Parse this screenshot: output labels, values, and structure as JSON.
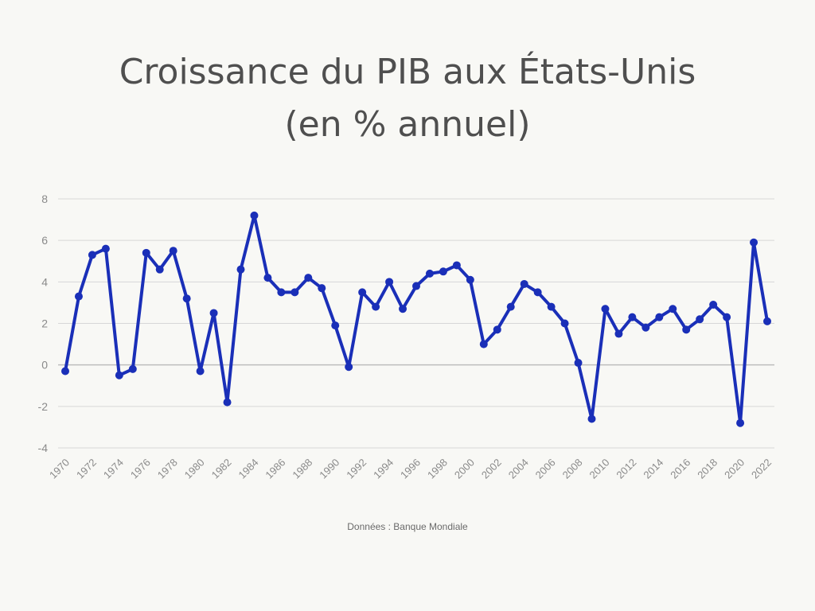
{
  "title": "Croissance du PIB aux États-Unis (en % annuel)",
  "source": "Données : Banque Mondiale",
  "colors": {
    "line": "#1a2fb8",
    "grid": "#d7d7d7",
    "zero_line": "#bdbdbd",
    "tick_text": "#8a8a8a",
    "background": "#f8f8f5"
  },
  "chart_data": {
    "type": "line",
    "title": "Croissance du PIB aux États-Unis (en % annuel)",
    "xlabel": "",
    "ylabel": "",
    "ylim": [
      -4,
      8
    ],
    "yticks": [
      8,
      6,
      4,
      2,
      0,
      -2,
      -4
    ],
    "xtick_labels": [
      "1970",
      "1972",
      "1974",
      "1976",
      "1978",
      "1980",
      "1982",
      "1984",
      "1986",
      "1988",
      "1990",
      "1992",
      "1994",
      "1996",
      "1998",
      "2000",
      "2002",
      "2004",
      "2006",
      "2008",
      "2010",
      "2012",
      "2014",
      "2016",
      "2018",
      "2020",
      "2022"
    ],
    "grid": true,
    "legend": "none",
    "series": [
      {
        "x": [
          1970,
          1971,
          1972,
          1973,
          1974,
          1975,
          1976,
          1977,
          1978,
          1979,
          1980,
          1981,
          1982,
          1983,
          1984,
          1985,
          1986,
          1987,
          1988,
          1989,
          1990,
          1991,
          1992,
          1993,
          1994,
          1995,
          1996,
          1997,
          1998,
          1999,
          2000,
          2001,
          2002,
          2003,
          2004,
          2005,
          2006,
          2007,
          2008,
          2009,
          2010,
          2011,
          2012,
          2013,
          2014,
          2015,
          2016,
          2017,
          2018,
          2019,
          2020,
          2021,
          2022
        ],
        "values": [
          -0.3,
          3.3,
          5.3,
          5.6,
          -0.5,
          -0.2,
          5.4,
          4.6,
          5.5,
          3.2,
          -0.3,
          2.5,
          -1.8,
          4.6,
          7.2,
          4.2,
          3.5,
          3.5,
          4.2,
          3.7,
          1.9,
          -0.1,
          3.5,
          2.8,
          4.0,
          2.7,
          3.8,
          4.4,
          4.5,
          4.8,
          4.1,
          1.0,
          1.7,
          2.8,
          3.9,
          3.5,
          2.8,
          2.0,
          0.1,
          -2.6,
          2.7,
          1.5,
          2.3,
          1.8,
          2.3,
          2.7,
          1.7,
          2.2,
          2.9,
          2.3,
          -2.8,
          5.9,
          2.1
        ]
      }
    ]
  }
}
